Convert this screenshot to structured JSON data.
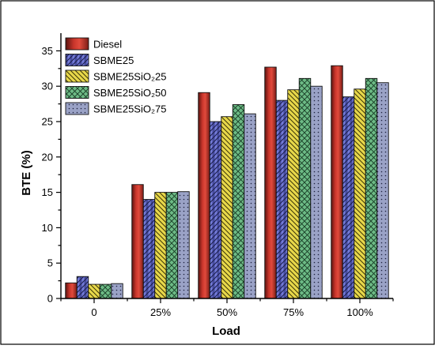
{
  "chart_data": {
    "type": "bar",
    "xlabel": "Load",
    "ylabel": "BTE (%)",
    "categories": [
      "0",
      "25%",
      "50%",
      "75%",
      "100%"
    ],
    "ylim": [
      0,
      37.5
    ],
    "yticks": [
      0,
      5,
      10,
      15,
      20,
      25,
      30,
      35
    ],
    "legend_position": "top-left",
    "grid": false,
    "series": [
      {
        "name": "Diesel",
        "pattern": "shaded",
        "color": "#d23b2e",
        "values": [
          2.2,
          16.1,
          29.1,
          32.7,
          32.9
        ]
      },
      {
        "name": "SBME25",
        "pattern": "diagonal-hatch",
        "color": "#6b73d6",
        "values": [
          3.1,
          14.0,
          25.0,
          28.0,
          28.5
        ]
      },
      {
        "name": "SBME25SiO₂25",
        "pattern": "diagonal-hatch",
        "color": "#e8d84a",
        "values": [
          2.0,
          15.0,
          25.7,
          29.5,
          29.6
        ]
      },
      {
        "name": "SBME25SiO₂50",
        "pattern": "crosshatch",
        "color": "#5fae7a",
        "values": [
          2.0,
          15.0,
          27.4,
          31.1,
          31.1
        ]
      },
      {
        "name": "SBME25SiO₂75",
        "pattern": "dots",
        "color": "#8a93b8",
        "values": [
          2.1,
          15.1,
          26.1,
          30.0,
          30.5
        ]
      }
    ]
  }
}
